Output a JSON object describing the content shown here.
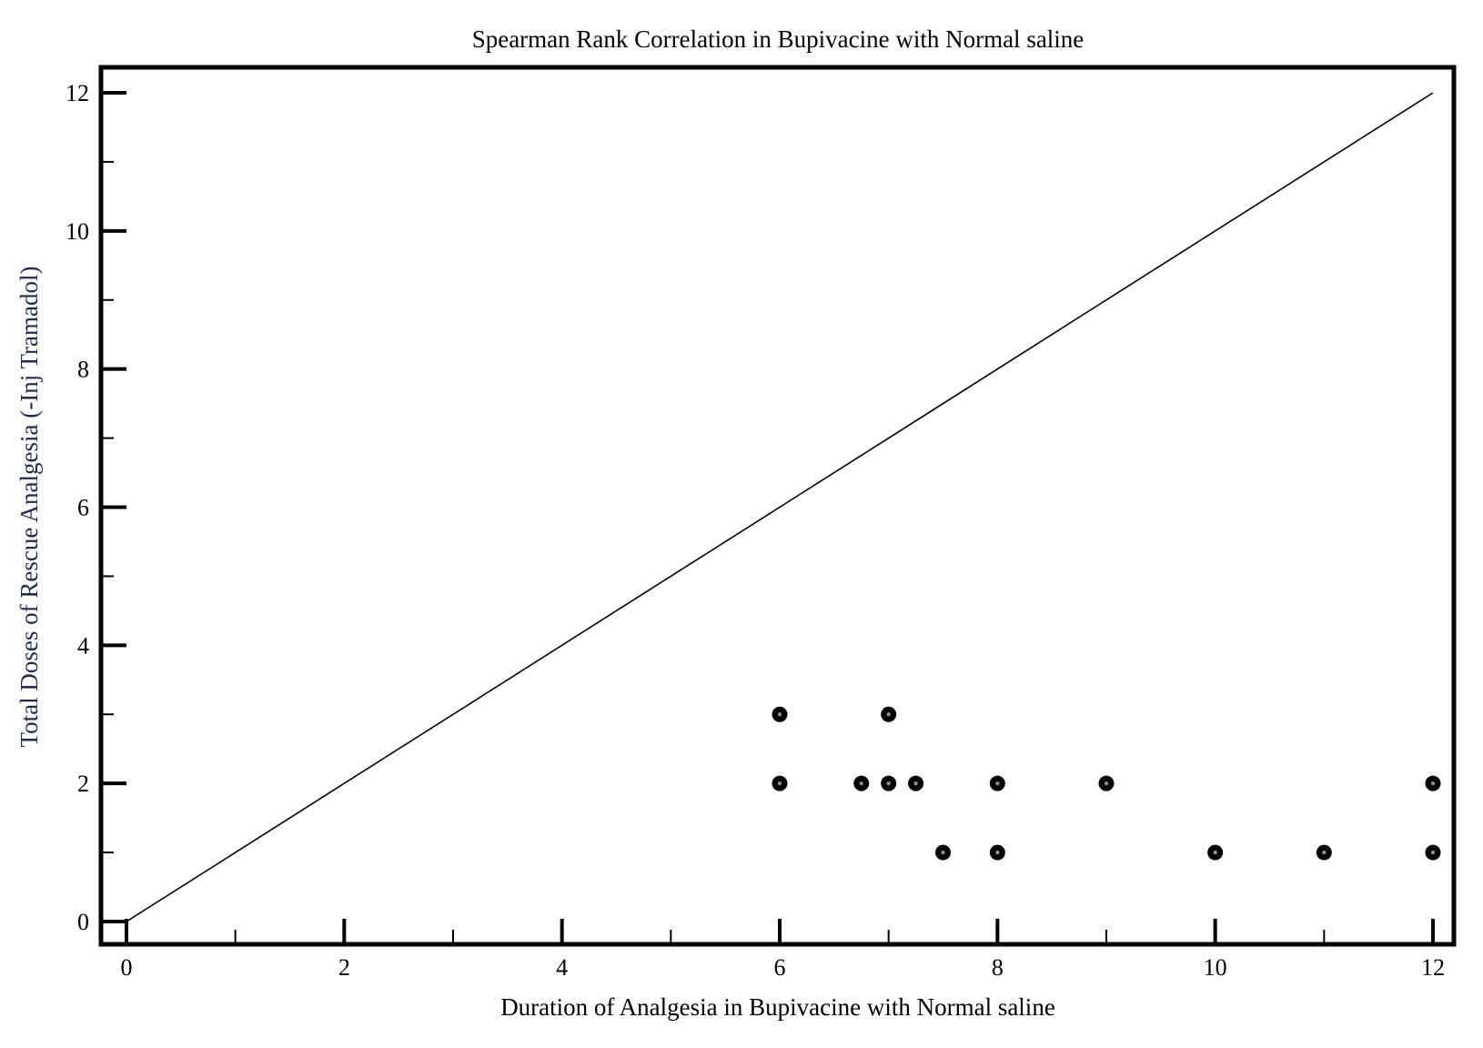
{
  "chart_data": {
    "type": "scatter",
    "title": "Spearman Rank Correlation in Bupivacine with Normal saline",
    "xlabel": "Duration of Analgesia in Bupivacine with Normal saline",
    "ylabel": "Total Doses of Rescue Analgesia (-Inj Tramadol)",
    "xlim": [
      0,
      12
    ],
    "ylim": [
      0,
      12
    ],
    "x_ticks": [
      0,
      2,
      4,
      6,
      8,
      10,
      12
    ],
    "y_ticks": [
      0,
      2,
      4,
      6,
      8,
      10,
      12
    ],
    "x_tick_labels": [
      "0",
      "2",
      "4",
      "6",
      "8",
      "10",
      "12"
    ],
    "y_tick_labels": [
      "0",
      "2",
      "4",
      "6",
      "8",
      "10",
      "12"
    ],
    "grid": false,
    "legend": "none",
    "reference_line": {
      "x": [
        0,
        12
      ],
      "y": [
        0,
        12
      ]
    },
    "series": [
      {
        "points": [
          {
            "x": 6,
            "y": 3
          },
          {
            "x": 7,
            "y": 3
          },
          {
            "x": 6,
            "y": 2
          },
          {
            "x": 6.75,
            "y": 2
          },
          {
            "x": 7,
            "y": 2
          },
          {
            "x": 7.25,
            "y": 2
          },
          {
            "x": 8,
            "y": 2
          },
          {
            "x": 9,
            "y": 2
          },
          {
            "x": 12,
            "y": 2
          },
          {
            "x": 7.5,
            "y": 1
          },
          {
            "x": 8,
            "y": 1
          },
          {
            "x": 10,
            "y": 1
          },
          {
            "x": 11,
            "y": 1
          },
          {
            "x": 12,
            "y": 1
          }
        ]
      }
    ]
  }
}
